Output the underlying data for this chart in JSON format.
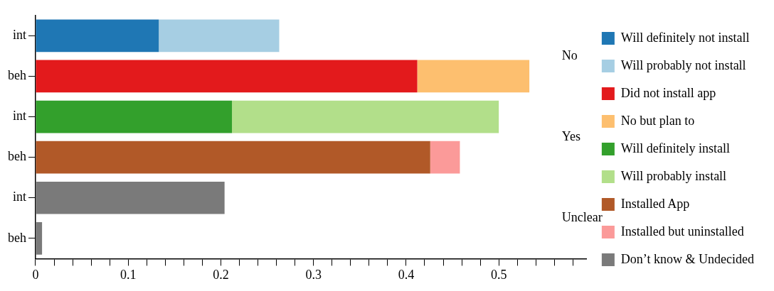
{
  "chart_data": {
    "type": "bar",
    "orientation": "horizontal",
    "stacked": true,
    "categories": [
      "int",
      "beh",
      "int",
      "beh",
      "int",
      "beh"
    ],
    "series": [
      {
        "name": "Will definitely not install",
        "color": "#1f77b4",
        "values": [
          0.133,
          null,
          null,
          null,
          null,
          null
        ]
      },
      {
        "name": "Will probably not install",
        "color": "#a6cee3",
        "values": [
          0.13,
          null,
          null,
          null,
          null,
          null
        ]
      },
      {
        "name": "Did not install app",
        "color": "#e31a1c",
        "values": [
          null,
          0.412,
          null,
          null,
          null,
          null
        ]
      },
      {
        "name": "No but plan to",
        "color": "#fdbf6f",
        "values": [
          null,
          0.121,
          null,
          null,
          null,
          null
        ]
      },
      {
        "name": "Will definitely install",
        "color": "#33a02c",
        "values": [
          null,
          null,
          0.212,
          null,
          null,
          null
        ]
      },
      {
        "name": "Will probably install",
        "color": "#b2df8a",
        "values": [
          null,
          null,
          0.288,
          null,
          null,
          null
        ]
      },
      {
        "name": "Installed App",
        "color": "#b15928",
        "values": [
          null,
          null,
          null,
          0.426,
          null,
          null
        ]
      },
      {
        "name": "Installed but uninstalled",
        "color": "#fb9a99",
        "values": [
          null,
          null,
          null,
          0.032,
          null,
          null
        ]
      },
      {
        "name": "Don’t know & Undecided",
        "color": "#7a7a7a",
        "values": [
          null,
          null,
          null,
          null,
          0.204,
          0.007
        ]
      }
    ],
    "annotations": [
      "No",
      "Yes",
      "Unclear"
    ],
    "xlim": [
      0,
      0.595
    ],
    "xticks": [
      0,
      {
        "value": 0.02,
        "label": null
      },
      {
        "value": 0.04,
        "label": null
      },
      {
        "value": 0.06,
        "label": null
      },
      {
        "value": 0.08,
        "label": null
      },
      0.1,
      {
        "value": 0.12,
        "label": null
      },
      {
        "value": 0.14,
        "label": null
      },
      {
        "value": 0.16,
        "label": null
      },
      {
        "value": 0.18,
        "label": null
      },
      0.2,
      {
        "value": 0.22,
        "label": null
      },
      {
        "value": 0.24,
        "label": null
      },
      {
        "value": 0.26,
        "label": null
      },
      {
        "value": 0.28,
        "label": null
      },
      0.3,
      {
        "value": 0.32,
        "label": null
      },
      {
        "value": 0.34,
        "label": null
      },
      {
        "value": 0.36,
        "label": null
      },
      {
        "value": 0.38,
        "label": null
      },
      0.4,
      {
        "value": 0.42,
        "label": null
      },
      {
        "value": 0.44,
        "label": null
      },
      {
        "value": 0.46,
        "label": null
      },
      {
        "value": 0.48,
        "label": null
      },
      0.5,
      {
        "value": 0.52,
        "label": null
      },
      {
        "value": 0.54,
        "label": null
      },
      {
        "value": 0.56,
        "label": null
      },
      {
        "value": 0.58,
        "label": null
      }
    ],
    "grid": false,
    "legend": "right"
  }
}
